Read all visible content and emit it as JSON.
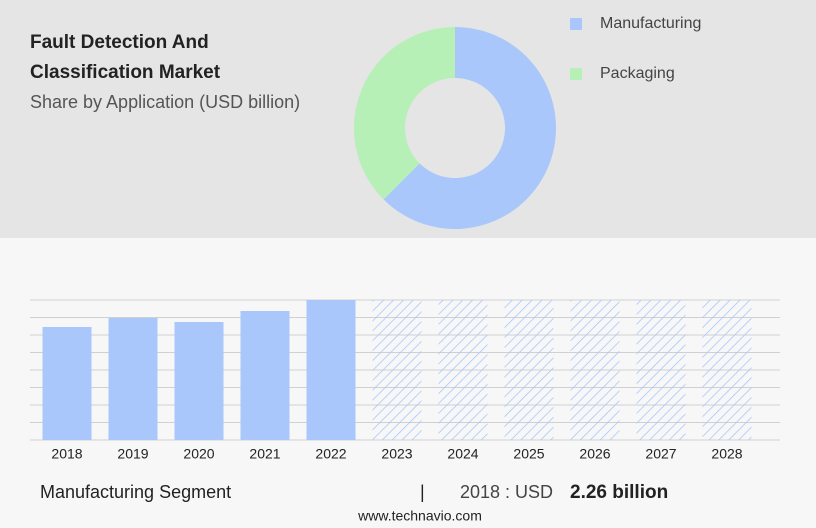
{
  "header": {
    "title_lines": [
      "Fault Detection And",
      "Classification Market"
    ],
    "subtitle": "Share by Application (USD billion)"
  },
  "chart_data": [
    {
      "type": "donut",
      "categories": [
        "Manufacturing",
        "Packaging"
      ],
      "values": [
        62.5,
        37.5
      ],
      "colors": [
        "#a9c7fb",
        "#b6f0b6"
      ]
    },
    {
      "type": "bar",
      "categories": [
        "2018",
        "2019",
        "2020",
        "2021",
        "2022",
        "2023",
        "2024",
        "2025",
        "2026",
        "2027",
        "2028"
      ],
      "values": [
        2.26,
        2.44,
        2.36,
        2.58,
        2.8,
        null,
        null,
        null,
        null,
        null,
        null
      ],
      "color": "#a9c7fb",
      "ylim": [
        0,
        2.8
      ],
      "yticks": [
        0,
        0.35,
        0.7,
        1.05,
        1.4,
        1.75,
        2.1,
        2.45,
        2.8
      ],
      "grid": true
    }
  ],
  "footer": {
    "segment": "Manufacturing Segment",
    "separator": "|",
    "year_text": "2018 : USD",
    "highlight": "2.26 billion",
    "source": "www.technavio.com"
  }
}
